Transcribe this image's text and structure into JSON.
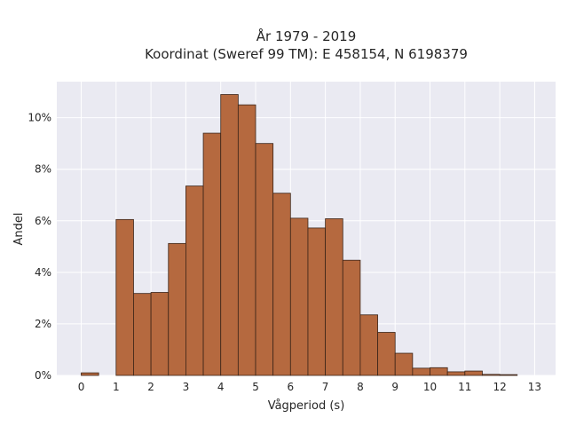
{
  "chart_data": {
    "type": "bar",
    "title_line1": "År 1979 - 2019",
    "title_line2": "Koordinat (Sweref 99 TM): E 458154, N 6198379",
    "xlabel": "Vågperiod (s)",
    "ylabel": "Andel",
    "xlim": [
      -0.7,
      13.6
    ],
    "ylim": [
      0,
      11.4
    ],
    "bin_width": 0.5,
    "bin_starts": [
      0.0,
      1.0,
      1.5,
      2.0,
      2.5,
      3.0,
      3.5,
      4.0,
      4.5,
      5.0,
      5.5,
      6.0,
      6.5,
      7.0,
      7.5,
      8.0,
      8.5,
      9.0,
      9.5,
      10.0,
      10.5,
      11.0,
      11.5,
      12.0
    ],
    "values": [
      0.1,
      6.05,
      3.18,
      3.22,
      5.12,
      7.35,
      9.4,
      10.9,
      10.5,
      9.0,
      7.07,
      6.1,
      5.72,
      6.08,
      4.47,
      2.35,
      1.67,
      0.86,
      0.28,
      0.3,
      0.14,
      0.17,
      0.04,
      0.03
    ],
    "x_ticks": [
      "0",
      "1",
      "2",
      "3",
      "4",
      "5",
      "6",
      "7",
      "8",
      "9",
      "10",
      "11",
      "12",
      "13"
    ],
    "y_ticks": [
      "0%",
      "2%",
      "4%",
      "6%",
      "8%",
      "10%"
    ],
    "bar_color": "#b5693f",
    "plot_background": "#eaeaf2",
    "grid": true,
    "legend": "none"
  }
}
